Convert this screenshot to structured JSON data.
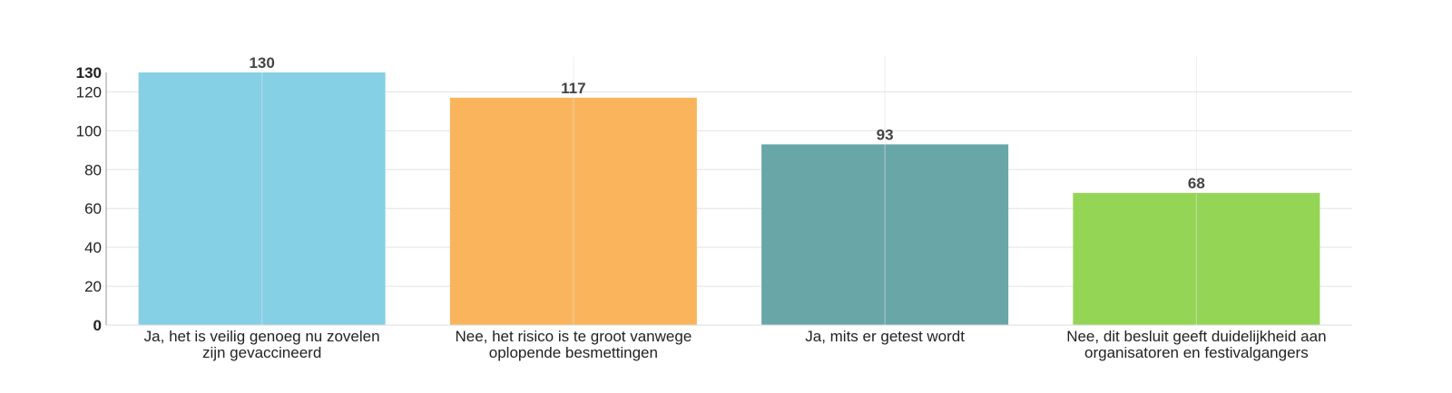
{
  "chart_data": {
    "type": "bar",
    "title": "",
    "xlabel": "",
    "ylabel": "",
    "categories": [
      [
        "Ja, het is veilig genoeg nu zovelen",
        "zijn gevaccineerd"
      ],
      [
        "Nee, het risico is te groot vanwege",
        "oplopende besmettingen"
      ],
      [
        "Ja, mits er getest wordt"
      ],
      [
        "Nee, dit besluit geeft duidelijkheid aan",
        "organisatoren en festivalgangers"
      ]
    ],
    "values": [
      130,
      117,
      93,
      68
    ],
    "colors": [
      "#85d0e5",
      "#f9b45c",
      "#68a6a8",
      "#94d555"
    ],
    "ylim": [
      0,
      130
    ],
    "yticks": [
      0,
      20,
      40,
      60,
      80,
      100,
      120,
      130
    ],
    "bold_ticks": [
      0,
      130
    ],
    "grid": true,
    "legend": "none"
  }
}
